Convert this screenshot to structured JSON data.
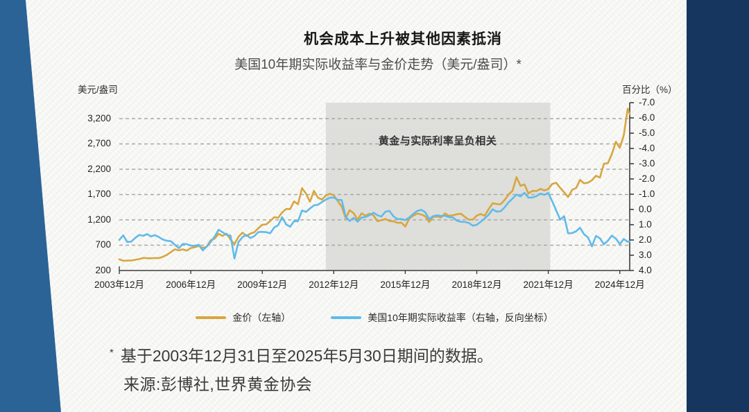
{
  "page": {
    "title": "机会成本上升被其他因素抵消",
    "subtitle": "美国10年期实际收益率与金价走势（美元/盎司）*",
    "footnote_star": "*",
    "footnote": "基于2003年12月31日至2025年5月30日期间的数据。",
    "source": "来源:彭博社,世界黄金协会"
  },
  "colors": {
    "gold": "#d7a63f",
    "blue": "#5fbbea",
    "paper": "#f6f6f3",
    "frame_left": "#2b6397",
    "frame_right": "#16365f",
    "band": "#dededb",
    "grid": "#a8a8a5",
    "axis": "#3c3c3c",
    "text": "#222222"
  },
  "chart_data": {
    "type": "line",
    "title": "机会成本上升被其他因素抵消",
    "subtitle": "美国10年期实际收益率与金价走势（美元/盎司）*",
    "total_months": 257,
    "step_months": 2,
    "x_start_label": "2003年12月",
    "x_end_label": "2025年5月",
    "x_ticks": [
      {
        "label": "2003年12月",
        "month": 0
      },
      {
        "label": "2006年12月",
        "month": 36
      },
      {
        "label": "2009年12月",
        "month": 72
      },
      {
        "label": "2012年12月",
        "month": 108
      },
      {
        "label": "2015年12月",
        "month": 144
      },
      {
        "label": "2018年12月",
        "month": 180
      },
      {
        "label": "2021年12月",
        "month": 216
      },
      {
        "label": "2024年12月",
        "month": 252
      }
    ],
    "left_axis": {
      "label": "美元/盎司",
      "min": 200,
      "top": 3515,
      "tick_values": [
        200,
        700,
        1200,
        1700,
        2200,
        2700,
        3200
      ],
      "tick_labels": [
        "200",
        "700",
        "1,200",
        "1,700",
        "2,200",
        "2,700",
        "3,200"
      ]
    },
    "right_axis": {
      "label": "百分比（%）",
      "top": -7.0,
      "bottom": 4.0,
      "inverted": true,
      "tick_values": [
        -7.0,
        -6.0,
        -5.0,
        -4.0,
        -3.0,
        -2.0,
        -1.0,
        0.0,
        1.0,
        2.0,
        3.0,
        4.0
      ],
      "tick_labels": [
        "-7.0",
        "-6.0",
        "-5.0",
        "-4.0",
        "-3.0",
        "-2.0",
        "-1.0",
        "0.0",
        "1.0",
        "2.0",
        "3.0",
        "4.0"
      ]
    },
    "band": {
      "start_month": 104,
      "end_month": 217,
      "label": "黄金与实际利率呈负相关"
    },
    "legend": [
      "金价（左轴）",
      "美国10年期实际收益率（右轴，反向坐标）"
    ],
    "series": [
      {
        "name": "金价（左轴）",
        "axis": "left",
        "color_key": "gold",
        "values": [
          415,
          400,
          390,
          395,
          405,
          425,
          438,
          435,
          435,
          437,
          440,
          470,
          515,
          555,
          625,
          590,
          625,
          600,
          635,
          665,
          680,
          655,
          670,
          790,
          835,
          925,
          880,
          930,
          820,
          730,
          870,
          945,
          890,
          930,
          950,
          1045,
          1095,
          1120,
          1180,
          1245,
          1250,
          1345,
          1420,
          1410,
          1565,
          1505,
          1825,
          1720,
          1565,
          1770,
          1650,
          1600,
          1690,
          1720,
          1675,
          1580,
          1470,
          1230,
          1395,
          1325,
          1205,
          1325,
          1290,
          1315,
          1285,
          1170,
          1185,
          1215,
          1185,
          1170,
          1135,
          1140,
          1060,
          1235,
          1290,
          1320,
          1310,
          1270,
          1150,
          1250,
          1270,
          1240,
          1320,
          1270,
          1300,
          1320,
          1315,
          1250,
          1200,
          1215,
          1280,
          1315,
          1285,
          1410,
          1520,
          1510,
          1515,
          1585,
          1700,
          1780,
          2035,
          1880,
          1895,
          1730,
          1770,
          1770,
          1815,
          1785,
          1805,
          1910,
          1935,
          1840,
          1750,
          1645,
          1800,
          1830,
          1990,
          1920,
          1940,
          1985,
          2065,
          2045,
          2300,
          2330,
          2500,
          2745,
          2625,
          2860,
          3390,
          3290
        ]
      },
      {
        "name": "美国10年期实际收益率（右轴，反向坐标）",
        "axis": "right",
        "color_key": "blue",
        "values": [
          2.0,
          1.7,
          2.1,
          2.1,
          1.85,
          1.7,
          1.7,
          1.6,
          1.75,
          1.65,
          1.8,
          2.0,
          2.05,
          2.05,
          2.3,
          2.5,
          2.3,
          2.3,
          2.35,
          2.4,
          2.3,
          2.65,
          2.4,
          2.15,
          1.75,
          1.3,
          1.45,
          1.7,
          1.75,
          3.2,
          2.1,
          1.8,
          1.7,
          1.85,
          1.75,
          1.5,
          1.45,
          1.45,
          1.55,
          1.2,
          1.0,
          0.5,
          1.0,
          1.1,
          0.8,
          0.75,
          0.1,
          0.15,
          -0.05,
          -0.25,
          -0.3,
          -0.5,
          -0.65,
          -0.75,
          -0.75,
          -0.6,
          -0.65,
          0.5,
          0.75,
          0.55,
          0.8,
          0.55,
          0.5,
          0.35,
          0.25,
          0.35,
          0.5,
          0.15,
          0.1,
          0.45,
          0.6,
          0.6,
          0.7,
          0.5,
          0.25,
          0.1,
          0.05,
          0.15,
          0.6,
          0.45,
          0.4,
          0.45,
          0.45,
          0.5,
          0.5,
          0.75,
          0.8,
          0.85,
          0.85,
          1.1,
          1.0,
          0.8,
          0.6,
          0.35,
          0.0,
          0.15,
          0.15,
          -0.15,
          -0.45,
          -0.7,
          -1.0,
          -0.85,
          -1.05,
          -0.75,
          -0.8,
          -0.85,
          -1.05,
          -0.95,
          -1.05,
          -0.5,
          0.1,
          0.65,
          0.45,
          1.55,
          1.55,
          1.45,
          1.2,
          1.6,
          1.85,
          2.45,
          1.7,
          1.9,
          2.25,
          2.05,
          1.75,
          1.95,
          2.25,
          1.95,
          2.1,
          2.1
        ]
      }
    ]
  }
}
